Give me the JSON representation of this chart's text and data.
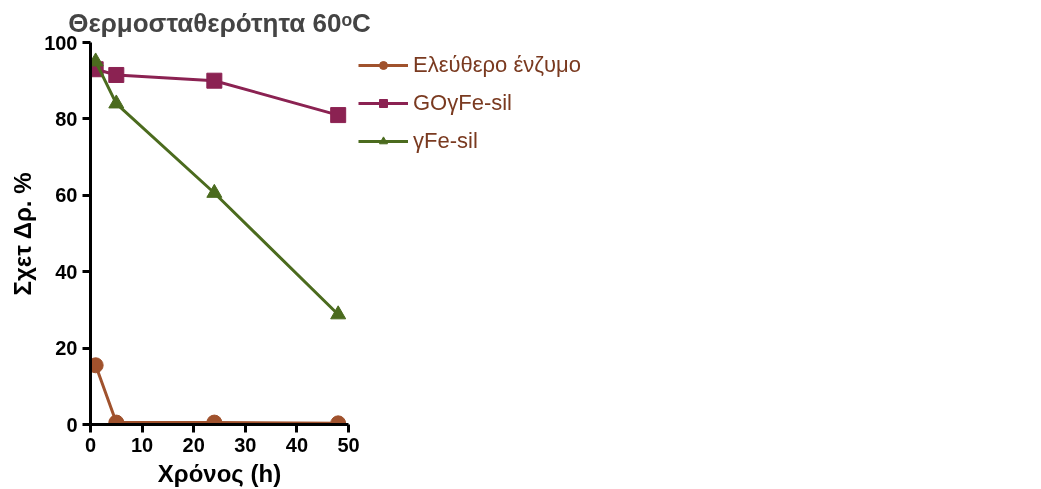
{
  "chart_data": {
    "type": "line",
    "title": "Θερμοσταθερότητα 60ᵒC",
    "xlabel": "Χρόνος (h)",
    "ylabel": "Σχετ Δρ. %",
    "x": [
      1,
      5,
      24,
      48
    ],
    "series": [
      {
        "name": "Ελεύθερο ένζυμο",
        "color": "#a0522d",
        "marker": "circle",
        "values": [
          15.5,
          0.5,
          0.5,
          0.3
        ]
      },
      {
        "name": "GOγFe-sil",
        "color": "#8b2252",
        "marker": "square",
        "values": [
          93,
          91.5,
          90,
          81
        ]
      },
      {
        "name": "γFe-sil",
        "color": "#4b6b1e",
        "marker": "triangle",
        "values": [
          95,
          84,
          60.6,
          28.8
        ]
      }
    ],
    "xlim": [
      0,
      50
    ],
    "xticks": [
      0,
      10,
      20,
      30,
      40,
      50
    ],
    "ylim": [
      0,
      100
    ],
    "yticks": [
      0,
      20,
      40,
      60,
      80,
      100
    ],
    "grid": false,
    "legend": "top right",
    "line_style": "solid"
  }
}
